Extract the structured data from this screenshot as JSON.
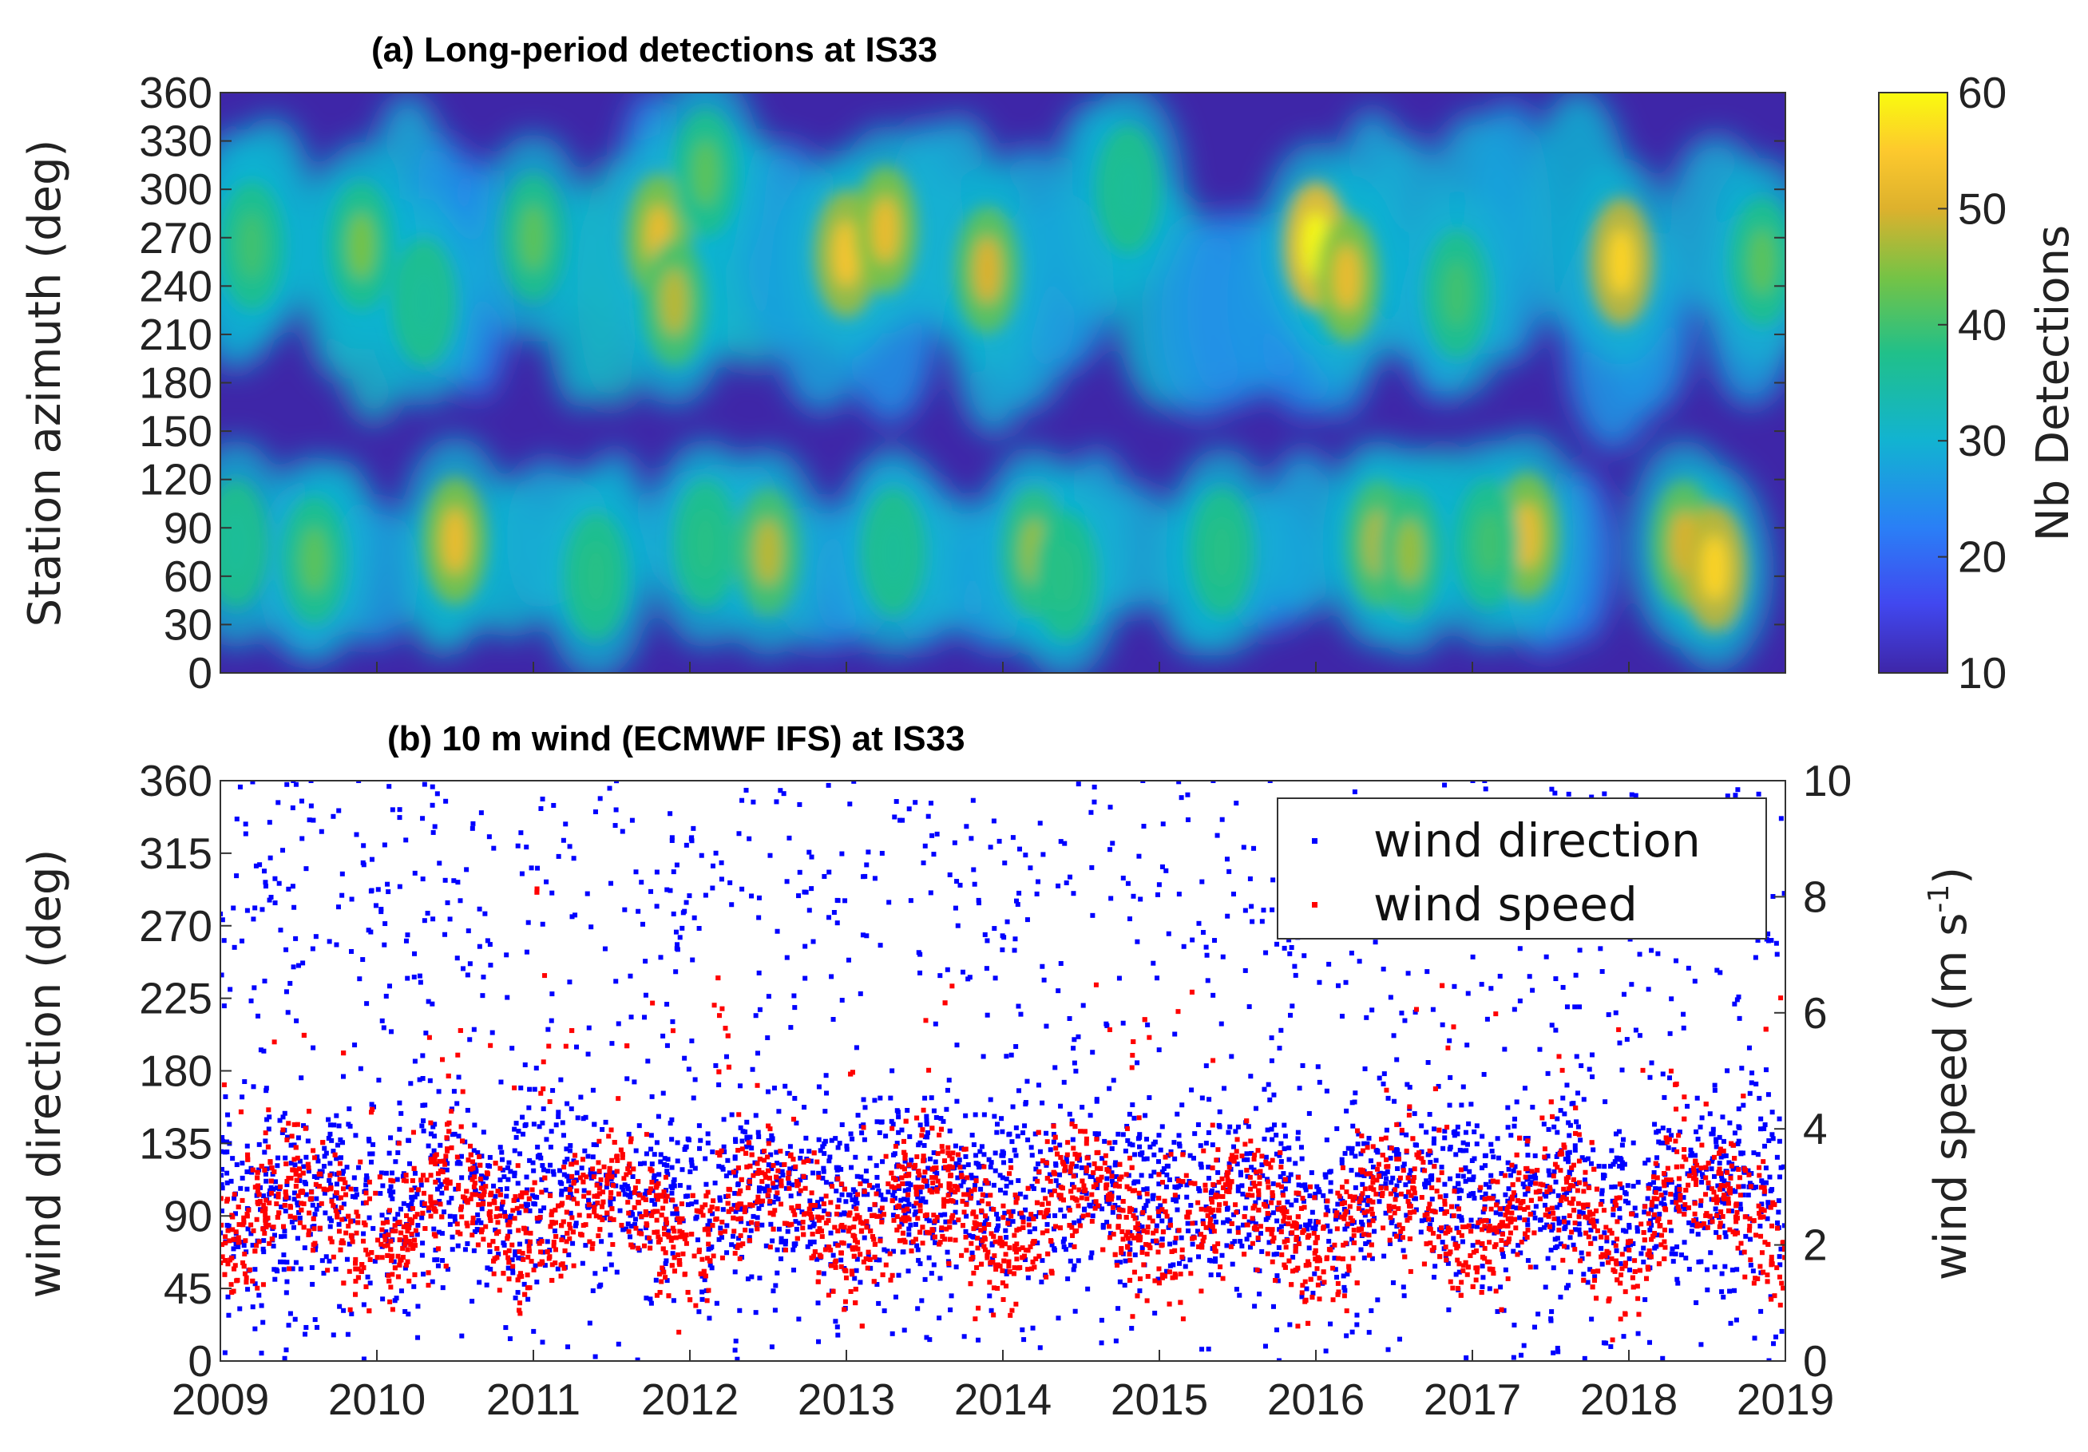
{
  "chart_data": [
    {
      "type": "heatmap",
      "title": "(a) Long-period detections at IS33",
      "xlabel": "",
      "ylabel": "Station azimuth (deg)",
      "xlim": [
        2009,
        2019
      ],
      "ylim": [
        0,
        360
      ],
      "yticks": [
        0,
        30,
        60,
        90,
        120,
        150,
        180,
        210,
        240,
        270,
        300,
        330,
        360
      ],
      "xticks": [
        2009,
        2010,
        2011,
        2012,
        2013,
        2014,
        2015,
        2016,
        2017,
        2018,
        2019
      ],
      "colorbar": {
        "label": "Nb Detections",
        "min": 10,
        "max": 60,
        "ticks": [
          10,
          20,
          30,
          40,
          50,
          60
        ]
      },
      "colors": {
        "background": "#3e26a8",
        "low": "#3e26a8",
        "high": "#f9fb0e"
      },
      "clusters": [
        {
          "year": 2009.2,
          "azimuth": 265,
          "value": 40
        },
        {
          "year": 2009.6,
          "azimuth": 70,
          "value": 42
        },
        {
          "year": 2009.1,
          "azimuth": 80,
          "value": 36
        },
        {
          "year": 2009.9,
          "azimuth": 265,
          "value": 44
        },
        {
          "year": 2010.5,
          "azimuth": 82,
          "value": 52
        },
        {
          "year": 2010.3,
          "azimuth": 230,
          "value": 36
        },
        {
          "year": 2011.0,
          "azimuth": 270,
          "value": 42
        },
        {
          "year": 2011.4,
          "azimuth": 60,
          "value": 38
        },
        {
          "year": 2011.8,
          "azimuth": 270,
          "value": 52
        },
        {
          "year": 2011.9,
          "azimuth": 230,
          "value": 48
        },
        {
          "year": 2012.1,
          "azimuth": 310,
          "value": 42
        },
        {
          "year": 2012.5,
          "azimuth": 75,
          "value": 48
        },
        {
          "year": 2012.1,
          "azimuth": 80,
          "value": 38
        },
        {
          "year": 2013.0,
          "azimuth": 260,
          "value": 54
        },
        {
          "year": 2013.25,
          "azimuth": 275,
          "value": 52
        },
        {
          "year": 2013.3,
          "azimuth": 75,
          "value": 36
        },
        {
          "year": 2013.9,
          "azimuth": 250,
          "value": 50
        },
        {
          "year": 2014.2,
          "azimuth": 75,
          "value": 46
        },
        {
          "year": 2014.4,
          "azimuth": 60,
          "value": 38
        },
        {
          "year": 2014.8,
          "azimuth": 300,
          "value": 36
        },
        {
          "year": 2015.4,
          "azimuth": 75,
          "value": 38
        },
        {
          "year": 2016.0,
          "azimuth": 265,
          "value": 60
        },
        {
          "year": 2016.2,
          "azimuth": 245,
          "value": 52
        },
        {
          "year": 2016.4,
          "azimuth": 80,
          "value": 48
        },
        {
          "year": 2016.6,
          "azimuth": 75,
          "value": 46
        },
        {
          "year": 2016.9,
          "azimuth": 235,
          "value": 40
        },
        {
          "year": 2017.35,
          "azimuth": 85,
          "value": 52
        },
        {
          "year": 2017.1,
          "azimuth": 80,
          "value": 40
        },
        {
          "year": 2017.95,
          "azimuth": 255,
          "value": 56
        },
        {
          "year": 2018.35,
          "azimuth": 80,
          "value": 50
        },
        {
          "year": 2018.55,
          "azimuth": 65,
          "value": 56
        },
        {
          "year": 2018.85,
          "azimuth": 255,
          "value": 42
        }
      ]
    },
    {
      "type": "scatter",
      "title": "(b) 10 m wind (ECMWF IFS) at IS33",
      "xlabel": "",
      "ylabel": "wind direction (deg)",
      "ylabel_right": "wind speed (m s",
      "ylabel_right_sup": "-1",
      "ylabel_right_close": ")",
      "xlim": [
        2009,
        2019
      ],
      "ylim": [
        0,
        360
      ],
      "ylim_right": [
        0,
        10
      ],
      "yticks": [
        0,
        45,
        90,
        135,
        180,
        225,
        270,
        315,
        360
      ],
      "yticks_right": [
        0,
        2,
        4,
        6,
        8,
        10
      ],
      "xticks": [
        2009,
        2010,
        2011,
        2012,
        2013,
        2014,
        2015,
        2016,
        2017,
        2018,
        2019
      ],
      "legend_position": "top-right",
      "series": [
        {
          "name": "wind direction",
          "color": "#0000ff",
          "axis": "left",
          "typical_range": [
            60,
            150
          ],
          "upper_range": [
            250,
            330
          ],
          "monthly_median": [
            100,
            100,
            95,
            105,
            110,
            100,
            95,
            100,
            110,
            95
          ]
        },
        {
          "name": "wind speed",
          "color": "#ff0000",
          "axis": "right",
          "typical_range": [
            1.5,
            3.5
          ],
          "peaks": [
            {
              "year": 2010.5,
              "value": 5.8
            },
            {
              "year": 2011.05,
              "value": 8.2
            },
            {
              "year": 2012.2,
              "value": 7.0
            },
            {
              "year": 2018.3,
              "value": 5.5
            }
          ]
        }
      ]
    }
  ]
}
